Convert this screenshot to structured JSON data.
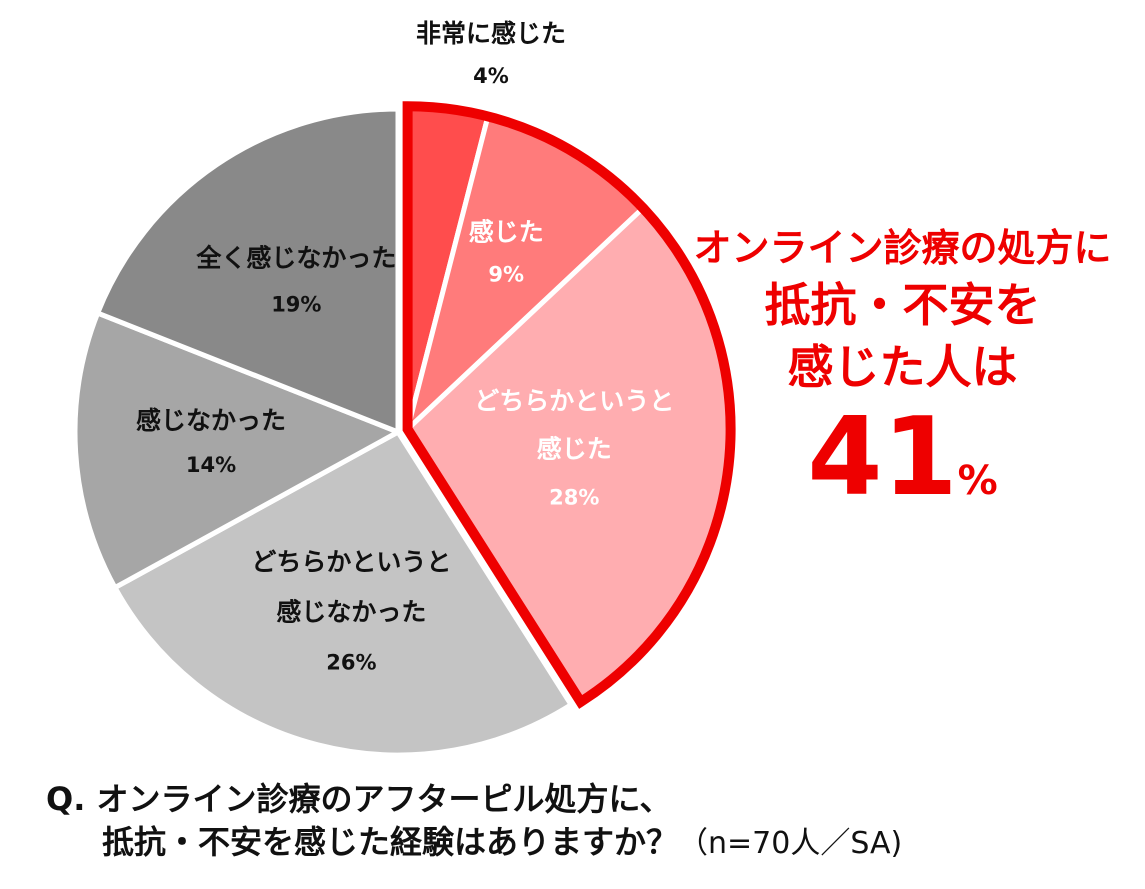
{
  "chart_data": {
    "type": "pie",
    "slices": [
      {
        "label": "非常に感じた",
        "value": 4,
        "value_label": "4%",
        "color": "#ff4d4d"
      },
      {
        "label": "感じた",
        "value": 9,
        "value_label": "9%",
        "color": "#ff7b7b"
      },
      {
        "label": "どちらかというと\n感じた",
        "value": 28,
        "value_label": "28%",
        "color": "#ffadb0"
      },
      {
        "label": "どちらかというと\n感じなかった",
        "value": 26,
        "value_label": "26%",
        "color": "#c4c4c4"
      },
      {
        "label": "感じなかった",
        "value": 14,
        "value_label": "14%",
        "color": "#a6a6a6"
      },
      {
        "label": "全く感じなかった",
        "value": 19,
        "value_label": "19%",
        "color": "#898989"
      }
    ],
    "highlight_color": "#ee0000",
    "callout": {
      "line1": "オンライン診療の処方に",
      "line2": "抵抗・不安を",
      "line3": "感じた人は",
      "value": "41",
      "unit": "%"
    }
  },
  "question": {
    "line1": "Q. オンライン診療のアフターピル処方に、",
    "line2": "抵抗・不安を感じた経験はありますか？",
    "note": "（n=70人／SA)"
  }
}
